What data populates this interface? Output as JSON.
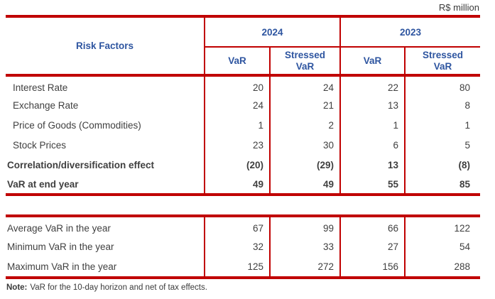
{
  "unit_label": "R$ million",
  "colors": {
    "rule_red": "#c00000",
    "header_blue": "#2e55a0",
    "body_text": "#3f3f3f"
  },
  "table1": {
    "header": {
      "risk_factors": "Risk Factors",
      "year_2024": "2024",
      "year_2023": "2023",
      "var_label": "VaR",
      "stressed_var_label": "Stressed\nVaR"
    },
    "rows": [
      {
        "label": "Interest Rate",
        "values": [
          "20",
          "24",
          "22",
          "80"
        ]
      },
      {
        "label": "Exchange Rate",
        "values": [
          "24",
          "21",
          "13",
          "8"
        ]
      },
      {
        "label": "Price of Goods (Commodities)",
        "values": [
          "1",
          "2",
          "1",
          "1"
        ]
      },
      {
        "label": "Stock Prices",
        "values": [
          "23",
          "30",
          "6",
          "5"
        ]
      },
      {
        "label": "Correlation/diversification effect",
        "values": [
          "(20)",
          "(29)",
          "13",
          "(8)"
        ]
      },
      {
        "label": "VaR at end year",
        "values": [
          "49",
          "49",
          "55",
          "85"
        ]
      }
    ]
  },
  "table2": {
    "rows": [
      {
        "label": "Average VaR in the year",
        "values": [
          "67",
          "99",
          "66",
          "122"
        ]
      },
      {
        "label": "Minimum VaR in the year",
        "values": [
          "32",
          "33",
          "27",
          "54"
        ]
      },
      {
        "label": "Maximum VaR in the year",
        "values": [
          "125",
          "272",
          "156",
          "288"
        ]
      }
    ]
  },
  "note": {
    "label": "Note:",
    "text": "VaR for the 10-day horizon and net of tax effects."
  }
}
